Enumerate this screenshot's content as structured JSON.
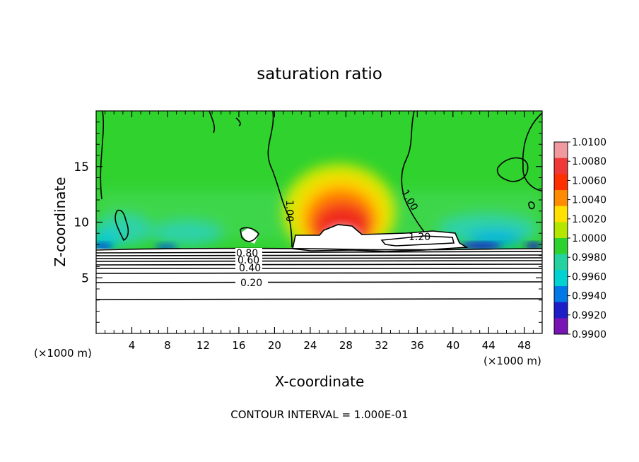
{
  "chart_data": {
    "type": "heatmap",
    "title": "saturation ratio",
    "xlabel": "X-coordinate",
    "ylabel": "Z-coordinate",
    "x_unit": "(×1000 m)",
    "z_unit": "(×1000 m)",
    "xlim": [
      0,
      50
    ],
    "ylim": [
      0,
      20
    ],
    "x_ticks": [
      4,
      8,
      12,
      16,
      20,
      24,
      28,
      32,
      36,
      40,
      44,
      48
    ],
    "y_ticks": [
      5,
      10,
      15
    ],
    "footer": "CONTOUR INTERVAL = 1.000E-01",
    "contour_labels": [
      "1.00",
      "1.00",
      "1.20",
      "0.80",
      "0.60",
      "0.40",
      "0.20"
    ],
    "colorbar": {
      "labels": [
        "1.0100",
        "1.0080",
        "1.0060",
        "1.0040",
        "1.0020",
        "1.0000",
        "0.9980",
        "0.9960",
        "0.9940",
        "0.9920",
        "0.9900"
      ],
      "colors": [
        "#f09aa0",
        "#f03838",
        "#ff3000",
        "#ff8c00",
        "#ffe000",
        "#b4e600",
        "#2ed22e",
        "#24d2a0",
        "#00d2d2",
        "#0078e6",
        "#1e1ec8",
        "#7814b4"
      ]
    }
  }
}
